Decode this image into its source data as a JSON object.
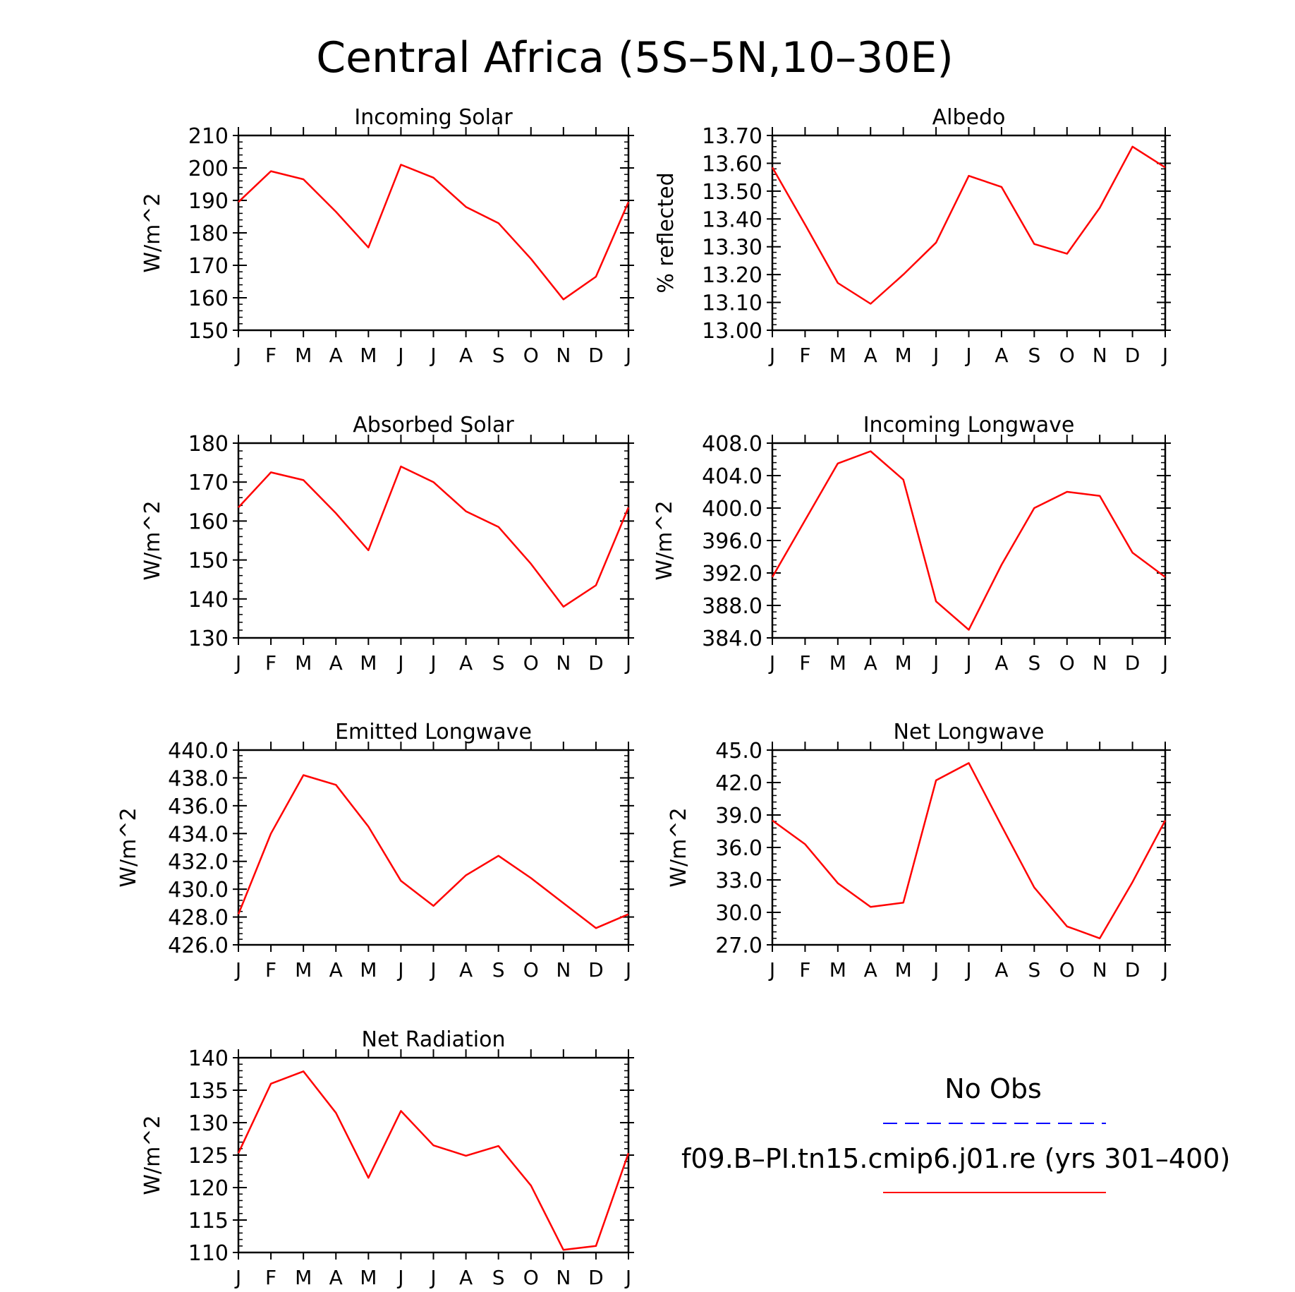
{
  "title": "Central Africa (5S–5N,10–30E)",
  "legend": {
    "obs_label": "No Obs",
    "obs_color": "#0000ff",
    "model_label": "f09.B–PI.tn15.cmip6.j01.re (yrs 301–400)",
    "model_color": "#ff0000"
  },
  "chart_data": [
    {
      "type": "line",
      "title": "Incoming Solar",
      "ylabel": "W/m^2",
      "x": [
        "J",
        "F",
        "M",
        "A",
        "M",
        "J",
        "J",
        "A",
        "S",
        "O",
        "N",
        "D",
        "J"
      ],
      "ylim": [
        150,
        210
      ],
      "yticks": [
        "150",
        "160",
        "170",
        "180",
        "190",
        "200",
        "210"
      ],
      "series": [
        {
          "values": [
            189.5,
            199,
            196.5,
            186.5,
            175.5,
            201,
            197,
            188,
            183,
            172,
            159.5,
            166.5,
            189.5
          ]
        }
      ]
    },
    {
      "type": "line",
      "title": "Albedo",
      "ylabel": "% reflected",
      "x": [
        "J",
        "F",
        "M",
        "A",
        "M",
        "J",
        "J",
        "A",
        "S",
        "O",
        "N",
        "D",
        "J"
      ],
      "ylim": [
        13.0,
        13.7
      ],
      "yticks": [
        "13.00",
        "13.10",
        "13.20",
        "13.30",
        "13.40",
        "13.50",
        "13.60",
        "13.70"
      ],
      "series": [
        {
          "values": [
            13.585,
            13.38,
            13.17,
            13.095,
            13.2,
            13.315,
            13.555,
            13.515,
            13.31,
            13.275,
            13.44,
            13.66,
            13.585
          ]
        }
      ]
    },
    {
      "type": "line",
      "title": "Absorbed Solar",
      "ylabel": "W/m^2",
      "x": [
        "J",
        "F",
        "M",
        "A",
        "M",
        "J",
        "J",
        "A",
        "S",
        "O",
        "N",
        "D",
        "J"
      ],
      "ylim": [
        130,
        180
      ],
      "yticks": [
        "130",
        "140",
        "150",
        "160",
        "170",
        "180"
      ],
      "series": [
        {
          "values": [
            163.5,
            172.5,
            170.5,
            162,
            152.5,
            174,
            170,
            162.5,
            158.5,
            149,
            138,
            143.5,
            163.5
          ]
        }
      ]
    },
    {
      "type": "line",
      "title": "Incoming Longwave",
      "ylabel": "W/m^2",
      "x": [
        "J",
        "F",
        "M",
        "A",
        "M",
        "J",
        "J",
        "A",
        "S",
        "O",
        "N",
        "D",
        "J"
      ],
      "ylim": [
        384,
        408
      ],
      "yticks": [
        "384.0",
        "388.0",
        "392.0",
        "396.0",
        "400.0",
        "404.0",
        "408.0"
      ],
      "series": [
        {
          "values": [
            391.5,
            398.5,
            405.5,
            407,
            403.5,
            388.5,
            385,
            393,
            400,
            402,
            401.5,
            394.5,
            391.5
          ]
        }
      ]
    },
    {
      "type": "line",
      "title": "Emitted Longwave",
      "ylabel": "W/m^2",
      "x": [
        "J",
        "F",
        "M",
        "A",
        "M",
        "J",
        "J",
        "A",
        "S",
        "O",
        "N",
        "D",
        "J"
      ],
      "ylim": [
        426,
        440
      ],
      "yticks": [
        "426.0",
        "428.0",
        "430.0",
        "432.0",
        "434.0",
        "436.0",
        "438.0",
        "440.0"
      ],
      "series": [
        {
          "values": [
            428.2,
            434,
            438.2,
            437.5,
            434.5,
            430.6,
            428.8,
            431,
            432.4,
            430.8,
            429,
            427.2,
            428.2
          ]
        }
      ]
    },
    {
      "type": "line",
      "title": "Net Longwave",
      "ylabel": "W/m^2",
      "x": [
        "J",
        "F",
        "M",
        "A",
        "M",
        "J",
        "J",
        "A",
        "S",
        "O",
        "N",
        "D",
        "J"
      ],
      "ylim": [
        27,
        45
      ],
      "yticks": [
        "27.0",
        "30.0",
        "33.0",
        "36.0",
        "39.0",
        "42.0",
        "45.0"
      ],
      "series": [
        {
          "values": [
            38.5,
            36.3,
            32.7,
            30.5,
            30.9,
            42.2,
            43.8,
            38,
            32.3,
            28.7,
            27.6,
            32.8,
            38.5
          ]
        }
      ]
    },
    {
      "type": "line",
      "title": "Net Radiation",
      "ylabel": "W/m^2",
      "x": [
        "J",
        "F",
        "M",
        "A",
        "M",
        "J",
        "J",
        "A",
        "S",
        "O",
        "N",
        "D",
        "J"
      ],
      "ylim": [
        110,
        140
      ],
      "yticks": [
        "110",
        "115",
        "120",
        "125",
        "130",
        "135",
        "140"
      ],
      "series": [
        {
          "values": [
            125.3,
            136,
            137.9,
            131.5,
            121.5,
            131.8,
            126.5,
            124.9,
            126.4,
            120.3,
            110.4,
            111,
            125.3
          ]
        }
      ]
    }
  ]
}
